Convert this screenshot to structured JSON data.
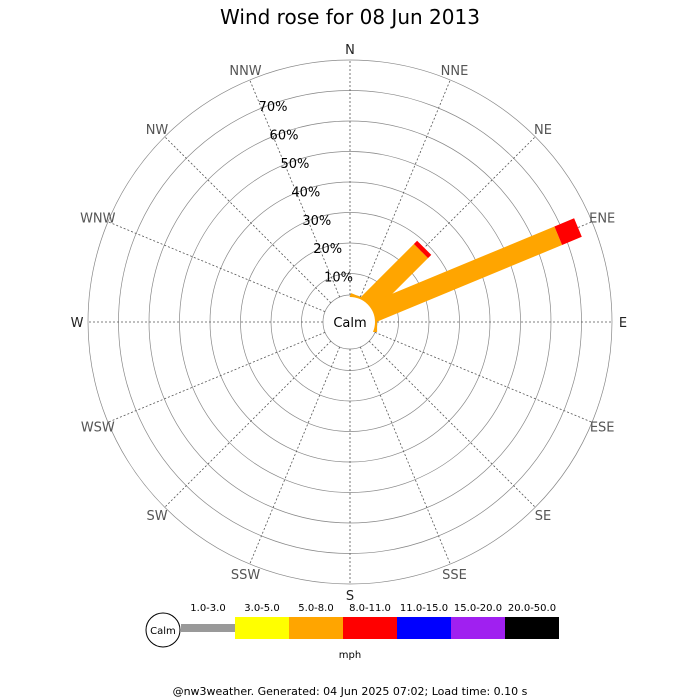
{
  "chart_data": {
    "type": "wind-rose",
    "title": "Wind rose for 08 Jun 2013",
    "directions": [
      "N",
      "NNE",
      "NE",
      "ENE",
      "E",
      "ESE",
      "SE",
      "SSE",
      "S",
      "SSW",
      "SW",
      "WSW",
      "W",
      "WNW",
      "NW",
      "NNW"
    ],
    "ring_labels": [
      "10%",
      "20%",
      "30%",
      "40%",
      "50%",
      "60%",
      "70%"
    ],
    "rmax_percent": 80,
    "calm_label": "Calm",
    "speed_bins": [
      {
        "label": "1.0-3.0",
        "color": "#999999"
      },
      {
        "label": "3.0-5.0",
        "color": "#ffff00"
      },
      {
        "label": "5.0-8.0",
        "color": "#ffa500"
      },
      {
        "label": "8.0-11.0",
        "color": "#ff0000"
      },
      {
        "label": "11.0-15.0",
        "color": "#0000ff"
      },
      {
        "label": "15.0-20.0",
        "color": "#a020f0"
      },
      {
        "label": "20.0-50.0",
        "color": "#000000"
      }
    ],
    "unit_label": "mph",
    "series": [
      {
        "direction": "N",
        "segments": [
          0,
          0,
          1.5,
          0,
          0,
          0,
          0
        ]
      },
      {
        "direction": "NNE",
        "segments": [
          0,
          0,
          3,
          0,
          0,
          0,
          0
        ]
      },
      {
        "direction": "NE",
        "segments": [
          0,
          0,
          27,
          1.5,
          0,
          0,
          0
        ]
      },
      {
        "direction": "ENE",
        "segments": [
          0,
          0,
          68,
          7,
          0,
          0,
          0
        ]
      },
      {
        "direction": "E",
        "segments": [
          0,
          0,
          3,
          0,
          0,
          0,
          0
        ]
      }
    ]
  },
  "footer": "@nw3weather. Generated: 04 Jun 2025 07:02; Load time: 0.10 s"
}
